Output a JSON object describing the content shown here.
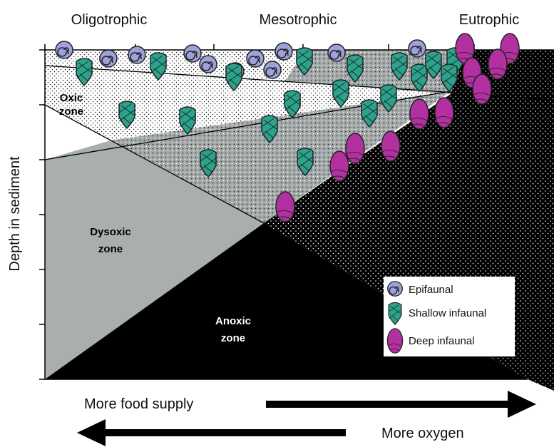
{
  "header": {
    "trophic_levels": [
      "Oligotrophic",
      "Mesotrophic",
      "Eutrophic"
    ]
  },
  "y_axis_label": "Depth in sediment",
  "zones": [
    {
      "lines": [
        "Oxic",
        "zone"
      ]
    },
    {
      "lines": [
        "Dysoxic",
        "zone"
      ]
    },
    {
      "lines": [
        "Anoxic",
        "zone"
      ]
    }
  ],
  "legend": [
    "Epifaunal",
    "Shallow infaunal",
    "Deep infaunal"
  ],
  "arrows": [
    "More food supply",
    "More oxygen"
  ]
}
